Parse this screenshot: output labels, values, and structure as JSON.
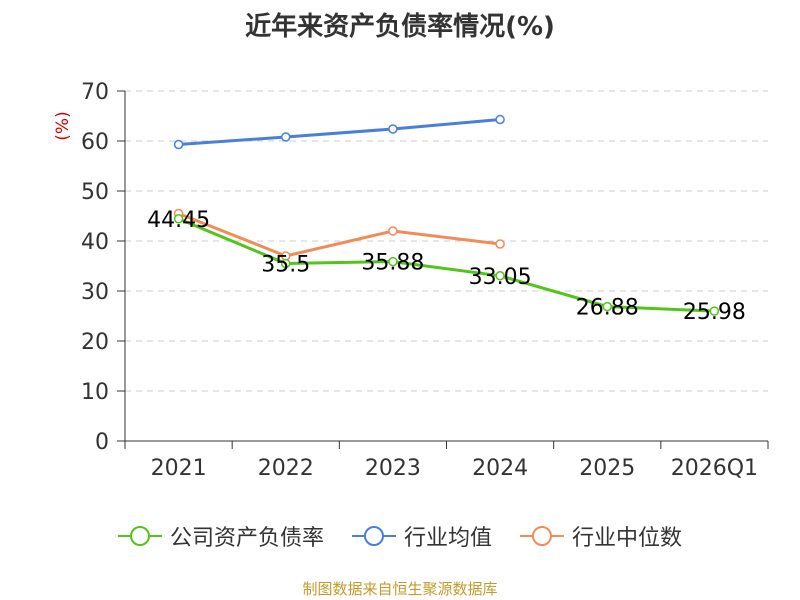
{
  "chart_data": {
    "type": "line",
    "title": "近年来资产负债率情况(%)",
    "ylabel": "(%)",
    "xlabel": "",
    "categories": [
      "2021",
      "2022",
      "2023",
      "2024",
      "2025",
      "2026Q1"
    ],
    "ylim": [
      0,
      70
    ],
    "yticks": [
      0,
      10,
      20,
      30,
      40,
      50,
      60,
      70
    ],
    "grid": true,
    "legend_position": "bottom",
    "series": [
      {
        "name": "公司资产负债率",
        "color": "#52c41a",
        "values": [
          44.45,
          35.5,
          35.88,
          33.05,
          26.88,
          25.98
        ],
        "labels": [
          "44.45",
          "35.5",
          "35.88",
          "33.05",
          "26.88",
          "25.98"
        ]
      },
      {
        "name": "行业均值",
        "color": "#4a7fd8",
        "values": [
          59.3,
          60.8,
          62.4,
          64.3,
          null,
          null
        ]
      },
      {
        "name": "行业中位数",
        "color": "#f08c5a",
        "values": [
          45.5,
          37.0,
          42.0,
          39.4,
          null,
          null
        ]
      }
    ]
  },
  "source_note": "制图数据来自恒生聚源数据库"
}
